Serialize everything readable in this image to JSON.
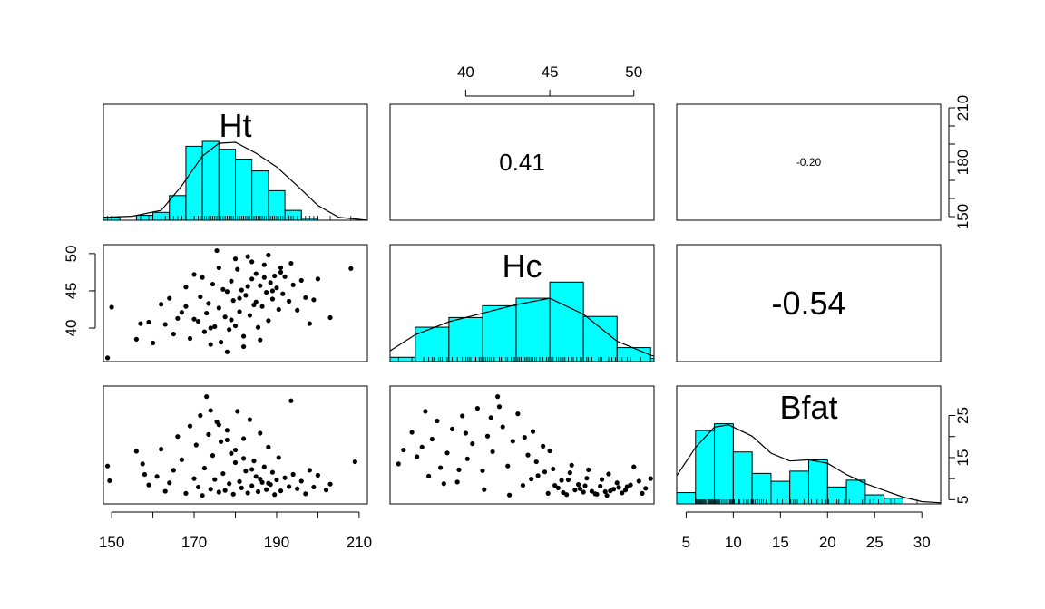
{
  "chart_data": {
    "type": "pairs",
    "variables": [
      "Ht",
      "Hc",
      "Bfat"
    ],
    "colors": {
      "hist_fill": "#00FFFF",
      "hist_stroke": "#000000",
      "points": "#000000",
      "density_line": "#000000"
    },
    "ranges": {
      "Ht": [
        148,
        212
      ],
      "Hc": [
        35.5,
        51.2
      ],
      "Bfat": [
        4,
        32
      ]
    },
    "ticks": {
      "Ht": [
        "150",
        "170",
        "190",
        "210"
      ],
      "Hc": [
        "40",
        "45",
        "50"
      ],
      "Bfat": [
        "5",
        "10",
        "15",
        "20",
        "25",
        "30"
      ],
      "Ht_side": [
        "150",
        "180",
        "210"
      ],
      "Bfat_side": [
        "5",
        "15",
        "25"
      ]
    },
    "correlations": [
      {
        "row": "Ht",
        "col": "Hc",
        "value": "0.41"
      },
      {
        "row": "Ht",
        "col": "Bfat",
        "value": "-0.20"
      },
      {
        "row": "Hc",
        "col": "Bfat",
        "value": "-0.54"
      }
    ],
    "histograms": {
      "Ht": {
        "edges": [
          148,
          152,
          156,
          160,
          164,
          168,
          172,
          176,
          180,
          184,
          188,
          192,
          196,
          200,
          204,
          208,
          212
        ],
        "counts": [
          0.3,
          0,
          0.5,
          0.8,
          2.5,
          7.5,
          8,
          7.2,
          6.2,
          5,
          3,
          1,
          0.2,
          0,
          0,
          0
        ],
        "density": [
          [
            148,
            0.3
          ],
          [
            155,
            0.4
          ],
          [
            162,
            1
          ],
          [
            167,
            3.5
          ],
          [
            172,
            6.5
          ],
          [
            176,
            7.8
          ],
          [
            180,
            7.9
          ],
          [
            185,
            6.8
          ],
          [
            190,
            5.4
          ],
          [
            195,
            3.5
          ],
          [
            200,
            1.5
          ],
          [
            205,
            0.3
          ],
          [
            212,
            0
          ]
        ]
      },
      "Hc": {
        "edges": [
          35.5,
          37,
          39,
          41,
          43,
          45,
          47,
          49,
          51,
          51.2
        ],
        "counts": [
          0.4,
          3.2,
          4.1,
          5.2,
          5.9,
          7.4,
          4.2,
          1.3,
          0.3
        ],
        "density": [
          [
            35.5,
            1
          ],
          [
            37,
            2.5
          ],
          [
            39,
            3.7
          ],
          [
            41,
            4.5
          ],
          [
            43,
            5.3
          ],
          [
            45,
            5.9
          ],
          [
            47,
            4.4
          ],
          [
            49,
            1.9
          ],
          [
            51,
            0.6
          ],
          [
            51.2,
            0.5
          ]
        ]
      },
      "Bfat": {
        "edges": [
          4,
          6,
          8,
          10,
          12,
          14,
          16,
          18,
          20,
          22,
          24,
          26,
          28,
          30,
          32
        ],
        "counts": [
          1,
          6.5,
          7.1,
          4.6,
          2.7,
          2,
          2.9,
          3.9,
          1.5,
          2.1,
          0.8,
          0.5,
          0,
          0
        ],
        "density": [
          [
            4,
            2.5
          ],
          [
            6,
            5
          ],
          [
            8,
            6.8
          ],
          [
            9.5,
            7
          ],
          [
            12,
            6
          ],
          [
            14,
            4.5
          ],
          [
            16,
            3.8
          ],
          [
            18,
            3.9
          ],
          [
            20,
            3.6
          ],
          [
            22,
            2.6
          ],
          [
            24,
            1.8
          ],
          [
            26,
            1.2
          ],
          [
            28,
            0.6
          ],
          [
            30,
            0.2
          ],
          [
            32,
            0.1
          ]
        ]
      }
    },
    "scatter_Ht_Hc": [
      [
        149,
        36
      ],
      [
        150,
        42.8
      ],
      [
        156,
        38.5
      ],
      [
        157,
        40.6
      ],
      [
        159,
        40.8
      ],
      [
        160,
        38
      ],
      [
        162,
        43.2
      ],
      [
        163,
        40.5
      ],
      [
        164,
        44
      ],
      [
        165,
        39.2
      ],
      [
        166,
        41.3
      ],
      [
        167,
        42.1
      ],
      [
        168,
        45.5
      ],
      [
        169,
        38.6
      ],
      [
        170,
        41.2
      ],
      [
        171,
        40.9
      ],
      [
        171.5,
        44.2
      ],
      [
        172,
        46.8
      ],
      [
        172.5,
        39.5
      ],
      [
        173,
        42
      ],
      [
        173.5,
        43.3
      ],
      [
        174,
        37.8
      ],
      [
        174.5,
        45.9
      ],
      [
        175,
        40.2
      ],
      [
        175.5,
        50.4
      ],
      [
        176,
        42.7
      ],
      [
        176.5,
        38.1
      ],
      [
        177,
        45.2
      ],
      [
        177.5,
        41.5
      ],
      [
        178,
        44.9
      ],
      [
        178.5,
        39.8
      ],
      [
        179,
        46.3
      ],
      [
        179.5,
        43.7
      ],
      [
        180,
        40.3
      ],
      [
        180.5,
        47.9
      ],
      [
        181,
        42.2
      ],
      [
        181.5,
        45.1
      ],
      [
        182,
        38.9
      ],
      [
        182.5,
        44.4
      ],
      [
        183,
        49.6
      ],
      [
        183.5,
        41.7
      ],
      [
        184,
        46.6
      ],
      [
        184.5,
        43.1
      ],
      [
        185,
        47.3
      ],
      [
        185.5,
        40.1
      ],
      [
        186,
        45.7
      ],
      [
        186.5,
        42.9
      ],
      [
        187,
        48.5
      ],
      [
        187.5,
        44.8
      ],
      [
        188,
        41
      ],
      [
        188.5,
        46.1
      ],
      [
        189,
        43.9
      ],
      [
        189.5,
        47
      ],
      [
        190,
        45.4
      ],
      [
        190.5,
        42.5
      ],
      [
        191,
        48.1
      ],
      [
        191.5,
        44.6
      ],
      [
        192,
        46.9
      ],
      [
        193,
        43.6
      ],
      [
        193.5,
        48.7
      ],
      [
        194,
        45.8
      ],
      [
        195,
        42.4
      ],
      [
        196,
        46.4
      ],
      [
        197,
        44.1
      ],
      [
        198,
        40.6
      ],
      [
        199,
        43.8
      ],
      [
        200,
        46.6
      ],
      [
        203,
        41.4
      ],
      [
        208,
        48
      ],
      [
        168,
        42.9
      ],
      [
        170,
        47.2
      ],
      [
        174,
        40
      ],
      [
        176,
        48.1
      ],
      [
        178,
        36.8
      ],
      [
        180,
        49.3
      ],
      [
        182,
        37.5
      ],
      [
        184,
        48.9
      ],
      [
        186,
        38.4
      ],
      [
        188,
        49.8
      ],
      [
        179,
        41.1
      ],
      [
        181,
        44
      ],
      [
        183,
        45.6
      ],
      [
        185,
        43.5
      ],
      [
        187,
        46.8
      ],
      [
        189,
        45
      ],
      [
        191,
        47.5
      ]
    ],
    "scatter_Ht_Bfat": [
      [
        149,
        13
      ],
      [
        149.5,
        9.5
      ],
      [
        156,
        16.5
      ],
      [
        157.5,
        13.5
      ],
      [
        158,
        11
      ],
      [
        159,
        8.5
      ],
      [
        161,
        10.5
      ],
      [
        162,
        17
      ],
      [
        163,
        7
      ],
      [
        164,
        9
      ],
      [
        165,
        12
      ],
      [
        166,
        20
      ],
      [
        167,
        14.5
      ],
      [
        168,
        6.5
      ],
      [
        169,
        22.5
      ],
      [
        170,
        10
      ],
      [
        170.5,
        18
      ],
      [
        171,
        8
      ],
      [
        171.5,
        25
      ],
      [
        172,
        6
      ],
      [
        172.5,
        12.5
      ],
      [
        173,
        29.5
      ],
      [
        173.5,
        20.5
      ],
      [
        174,
        7.5
      ],
      [
        174.5,
        15.5
      ],
      [
        175,
        9.8
      ],
      [
        175.5,
        23.5
      ],
      [
        176,
        6.8
      ],
      [
        176.5,
        18.8
      ],
      [
        177,
        11.2
      ],
      [
        177.5,
        7.2
      ],
      [
        178,
        21.5
      ],
      [
        178.5,
        8.8
      ],
      [
        179,
        16
      ],
      [
        179.5,
        6.3
      ],
      [
        180,
        13.8
      ],
      [
        180.5,
        26
      ],
      [
        181,
        9.3
      ],
      [
        181.5,
        7.8
      ],
      [
        182,
        19.5
      ],
      [
        182.5,
        11.8
      ],
      [
        183,
        6.6
      ],
      [
        183.5,
        24
      ],
      [
        184,
        8.3
      ],
      [
        184.5,
        14.2
      ],
      [
        185,
        10.5
      ],
      [
        185.5,
        6.9
      ],
      [
        186,
        20.8
      ],
      [
        186.5,
        9.1
      ],
      [
        187,
        12.8
      ],
      [
        187.5,
        7.4
      ],
      [
        188,
        17.5
      ],
      [
        188.5,
        8.6
      ],
      [
        189,
        11.5
      ],
      [
        189.5,
        6.2
      ],
      [
        190,
        9.7
      ],
      [
        190.5,
        15
      ],
      [
        191,
        7.1
      ],
      [
        192,
        10.2
      ],
      [
        193,
        8.1
      ],
      [
        193.5,
        28.5
      ],
      [
        194,
        11
      ],
      [
        195,
        7.6
      ],
      [
        196,
        9.4
      ],
      [
        197,
        6.4
      ],
      [
        198,
        12
      ],
      [
        199,
        8
      ],
      [
        200,
        10.8
      ],
      [
        202,
        7.3
      ],
      [
        203,
        8.7
      ],
      [
        209,
        14
      ],
      [
        174,
        26.2
      ],
      [
        176,
        22.8
      ],
      [
        178,
        19.2
      ],
      [
        180,
        16.8
      ],
      [
        182,
        14.8
      ],
      [
        184,
        12.2
      ],
      [
        186,
        9.9
      ],
      [
        188,
        8.9
      ]
    ],
    "scatter_Hc_Bfat": [
      [
        36,
        13.5
      ],
      [
        36.3,
        16.8
      ],
      [
        36.8,
        21
      ],
      [
        37.1,
        15.2
      ],
      [
        37.4,
        17.5
      ],
      [
        37.6,
        26
      ],
      [
        38,
        19.4
      ],
      [
        38.3,
        23.7
      ],
      [
        38.5,
        12.6
      ],
      [
        38.9,
        16.1
      ],
      [
        39.2,
        21.8
      ],
      [
        39.5,
        9.2
      ],
      [
        39.8,
        24.9
      ],
      [
        40.1,
        14.7
      ],
      [
        40.4,
        18.3
      ],
      [
        40.7,
        26.7
      ],
      [
        41,
        11.9
      ],
      [
        41.3,
        20.1
      ],
      [
        41.6,
        16.4
      ],
      [
        41.9,
        29.5
      ],
      [
        42.2,
        22.3
      ],
      [
        42.5,
        13
      ],
      [
        42.8,
        18.9
      ],
      [
        43.1,
        25.4
      ],
      [
        43.4,
        8.4
      ],
      [
        43.7,
        15.6
      ],
      [
        44,
        21.2
      ],
      [
        44.3,
        10.7
      ],
      [
        44.6,
        17.7
      ],
      [
        44.9,
        6.5
      ],
      [
        45.2,
        12.3
      ],
      [
        45.5,
        7.8
      ],
      [
        45.7,
        9.6
      ],
      [
        46,
        6.2
      ],
      [
        46.2,
        11.4
      ],
      [
        46.5,
        7.3
      ],
      [
        46.7,
        8.6
      ],
      [
        47,
        6.8
      ],
      [
        47.2,
        10.1
      ],
      [
        47.5,
        7
      ],
      [
        47.7,
        6.4
      ],
      [
        48,
        8.2
      ],
      [
        48.3,
        6.9
      ],
      [
        48.5,
        11.1
      ],
      [
        48.8,
        7.5
      ],
      [
        49,
        9
      ],
      [
        49.3,
        6.6
      ],
      [
        49.6,
        8.1
      ],
      [
        50,
        12.8
      ],
      [
        50.3,
        9.4
      ],
      [
        50.7,
        7.7
      ],
      [
        51,
        10
      ],
      [
        40,
        20.8
      ],
      [
        41.5,
        24.5
      ],
      [
        42,
        27.1
      ],
      [
        43.5,
        19.8
      ],
      [
        44.2,
        14
      ],
      [
        45,
        16.6
      ],
      [
        46.3,
        13.2
      ],
      [
        47.3,
        12.1
      ],
      [
        48.1,
        9.8
      ],
      [
        49.5,
        7.3
      ],
      [
        45.8,
        6.7
      ],
      [
        46.8,
        7.6
      ],
      [
        47.8,
        6.3
      ],
      [
        48.6,
        7.1
      ],
      [
        49.8,
        8.5
      ],
      [
        37.8,
        10.6
      ],
      [
        38.7,
        8.8
      ],
      [
        39.6,
        12.1
      ],
      [
        41.1,
        7.4
      ],
      [
        42.6,
        6.1
      ],
      [
        43.9,
        9.9
      ],
      [
        44.7,
        11.6
      ],
      [
        45.3,
        8.4
      ],
      [
        46.1,
        9.7
      ],
      [
        47.1,
        8.3
      ],
      [
        48.4,
        6
      ],
      [
        49.1,
        7.9
      ],
      [
        50.5,
        6.5
      ]
    ]
  }
}
